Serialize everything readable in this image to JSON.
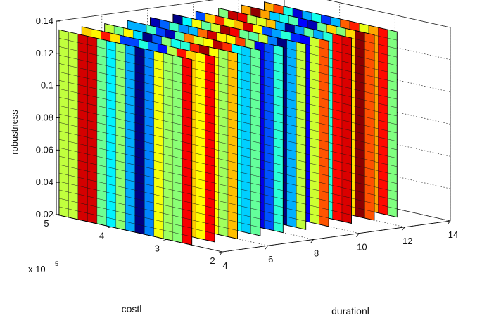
{
  "chart_data": {
    "type": "3d-slices",
    "xlabel": "durationl",
    "ylabel": "costl",
    "zlabel": "robustness",
    "y_multiplier_label": "x 10",
    "y_multiplier_exponent": "5",
    "x_ticks": [
      "4",
      "6",
      "8",
      "10",
      "12",
      "14"
    ],
    "y_ticks": [
      "2",
      "3",
      "4",
      "5"
    ],
    "z_ticks": [
      "0.02",
      "0.04",
      "0.06",
      "0.08",
      "0.1",
      "0.12",
      "0.14"
    ],
    "xlim": [
      4,
      14
    ],
    "ylim": [
      2,
      5
    ],
    "zlim": [
      0.02,
      0.14
    ],
    "grid": true,
    "colormap": "jet",
    "slices_x": [
      4,
      5,
      6,
      7,
      8,
      9,
      10,
      11,
      12,
      13
    ],
    "slice_y_range": [
      2.55,
      4.95
    ],
    "slice_z_range": [
      0.02,
      0.135
    ]
  }
}
